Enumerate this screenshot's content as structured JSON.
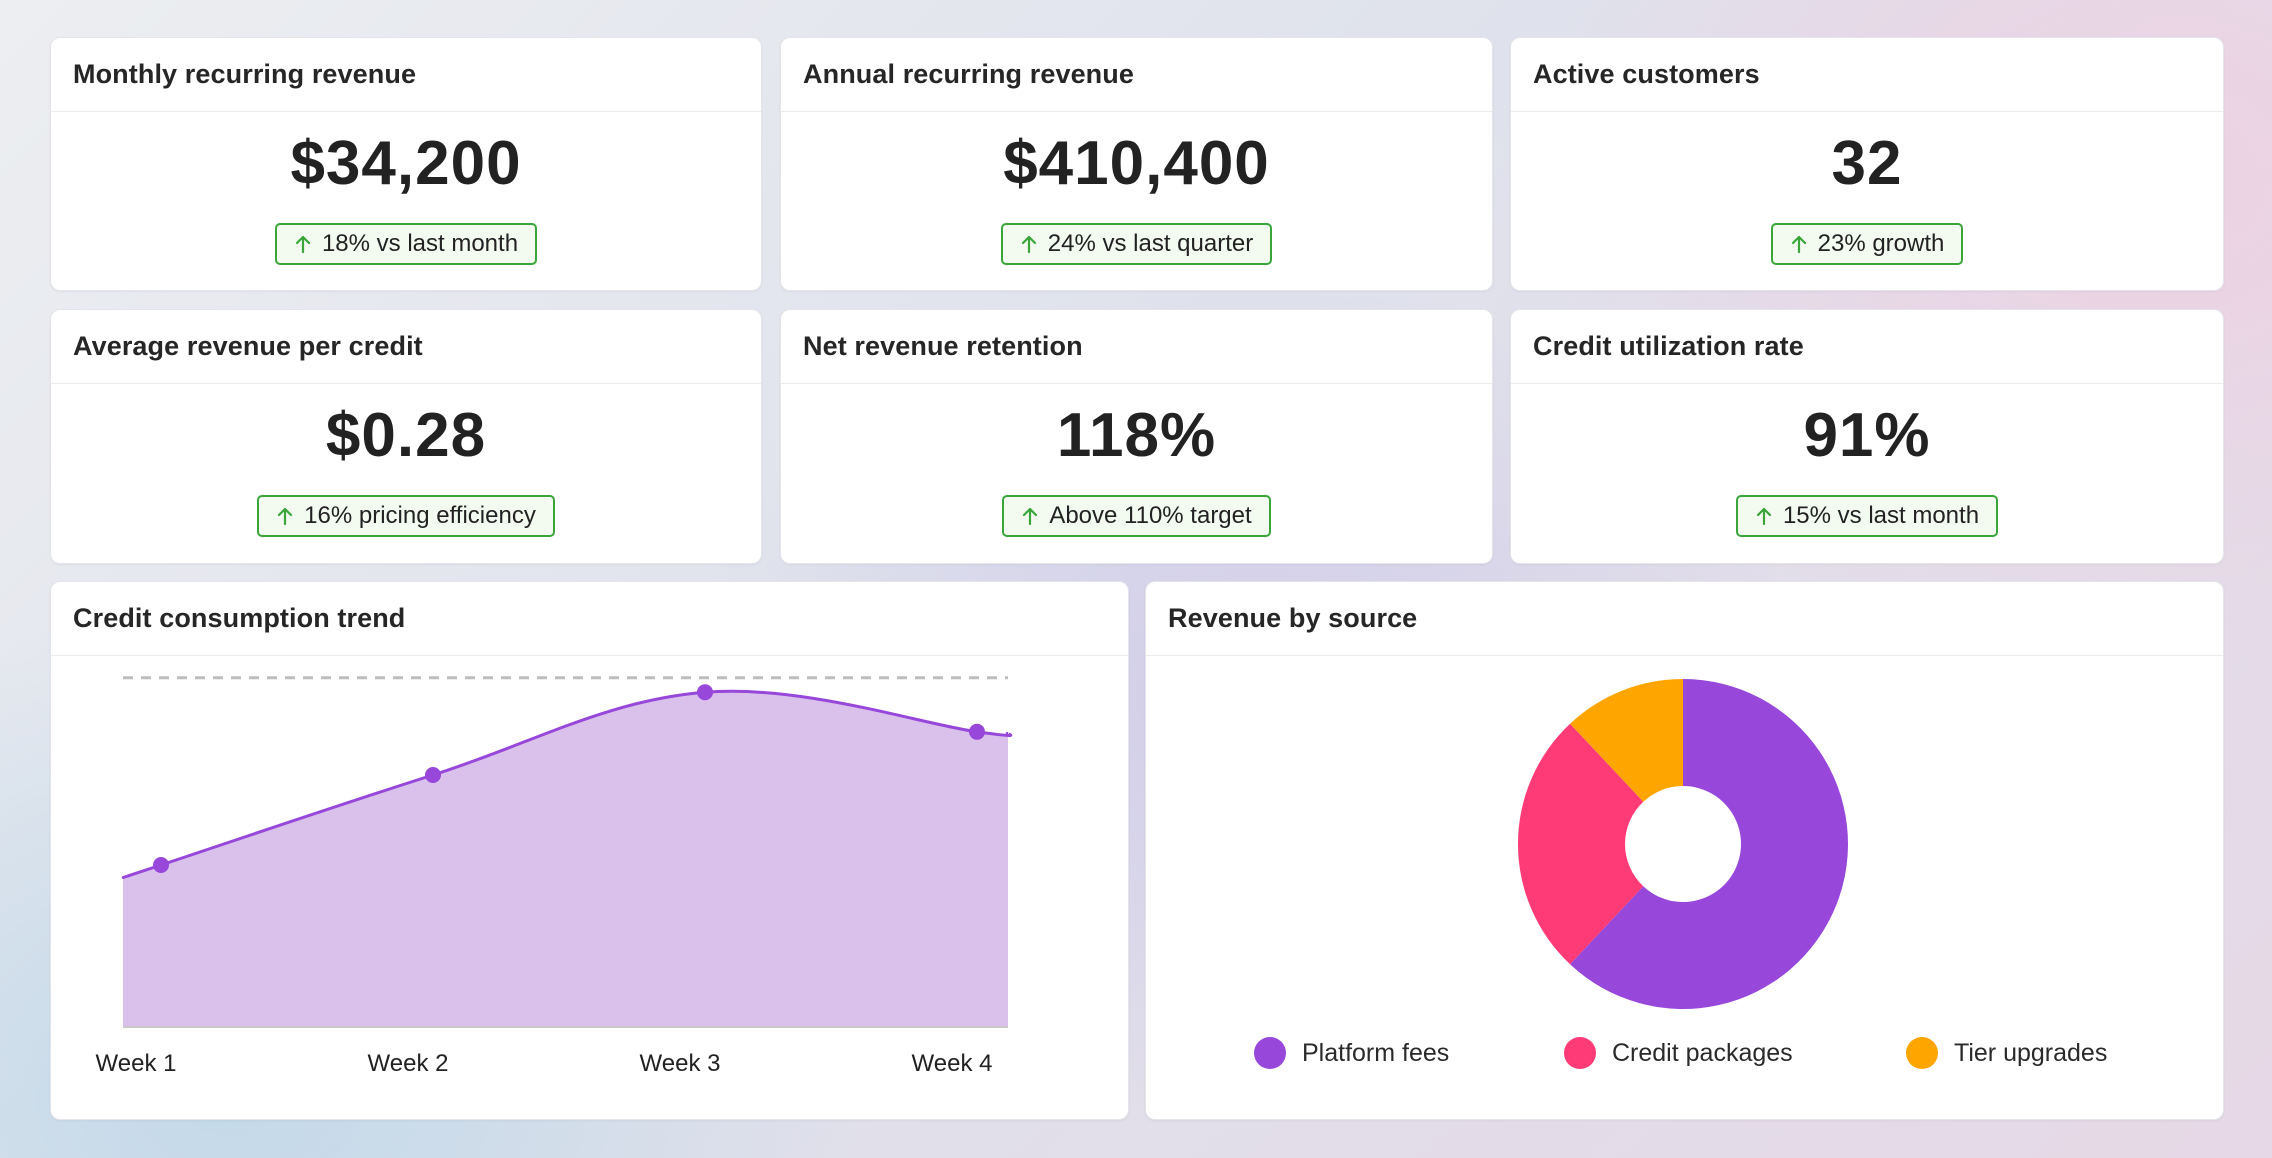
{
  "colors": {
    "accent_purple": "#9747d9",
    "area_fill": "#d9c1ec",
    "positive_green": "#3aa63a",
    "pink": "#ff3b77",
    "orange": "#ffa500"
  },
  "metrics": [
    {
      "title": "Monthly recurring revenue",
      "value": "$34,200",
      "badge": "18% vs last month",
      "icon": "arrow-up-icon"
    },
    {
      "title": "Annual recurring revenue",
      "value": "$410,400",
      "badge": "24% vs last quarter",
      "icon": "arrow-up-icon"
    },
    {
      "title": "Active customers",
      "value": "32",
      "badge": "23% growth",
      "icon": "arrow-up-icon"
    },
    {
      "title": "Average revenue per credit",
      "value": "$0.28",
      "badge": "16% pricing efficiency",
      "icon": "arrow-up-icon"
    },
    {
      "title": "Net revenue retention",
      "value": "118%",
      "badge": "Above 110% target",
      "icon": "arrow-up-icon"
    },
    {
      "title": "Credit utilization rate",
      "value": "91%",
      "badge": "15% vs last month",
      "icon": "arrow-up-icon"
    }
  ],
  "chart_data": [
    {
      "type": "area",
      "title": "Credit consumption trend",
      "categories": [
        "Week 1",
        "Week 2",
        "Week 3",
        "Week 4"
      ],
      "values": [
        45,
        70,
        93,
        82
      ],
      "reference_line": 97,
      "ylim": [
        0,
        100
      ],
      "grid": false,
      "legend": "none"
    },
    {
      "type": "pie",
      "title": "Revenue by source",
      "donut": true,
      "labels": [
        "Platform fees",
        "Credit packages",
        "Tier upgrades"
      ],
      "values": [
        62,
        26,
        12
      ],
      "colors": [
        "#9747d9",
        "#ff3b77",
        "#ffa500"
      ],
      "legend": "bottom"
    }
  ]
}
